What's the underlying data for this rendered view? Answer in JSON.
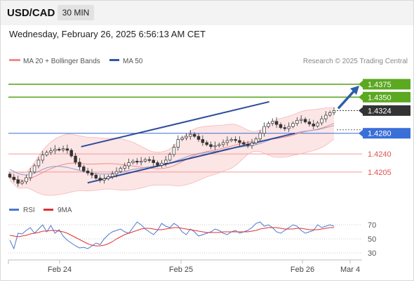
{
  "header": {
    "pair": "USD/CAD",
    "timeframe": "30 MIN"
  },
  "datetime": "Wednesday, February 26, 2025 6:56:13 AM CET",
  "legend": {
    "bollinger": {
      "label": "MA 20 + Bollinger Bands",
      "color": "#f28b8b"
    },
    "ma50": {
      "label": "MA 50",
      "color": "#2e57a4"
    }
  },
  "credit": "Research © 2025 Trading Central",
  "colors": {
    "resistance": "#5ba821",
    "pivot": "#3a6fd8",
    "support": "#f19a9a",
    "current": "#333333",
    "channel": "#2e4c9a",
    "band_fill": "#fbe0e0",
    "candle_up": "#333333",
    "candle_down": "#333333",
    "rsi": "#4a78d0",
    "rsi_ma": "#e03030"
  },
  "chart_data": [
    {
      "type": "candlestick",
      "title": "USD/CAD",
      "timeframe": "30 MIN",
      "xlabel": "",
      "ylabel": "",
      "x_ticks": [
        "Feb 24",
        "Feb 25",
        "Feb 26",
        "Mar 4"
      ],
      "ylim": [
        1.4168,
        1.4398
      ],
      "levels": [
        {
          "value": 1.4375,
          "label": "1.4375",
          "kind": "resistance"
        },
        {
          "value": 1.435,
          "label": "1.4350",
          "kind": "resistance"
        },
        {
          "value": 1.4324,
          "label": "1.4324",
          "kind": "current"
        },
        {
          "value": 1.428,
          "label": "1.4280",
          "kind": "pivot"
        },
        {
          "value": 1.424,
          "label": "1.4240",
          "kind": "support"
        },
        {
          "value": 1.4205,
          "label": "1.4205",
          "kind": "support"
        }
      ],
      "channel": {
        "upper": [
          [
            0.22,
            1.4254
          ],
          [
            0.8,
            1.4341
          ]
        ],
        "lower": [
          [
            0.24,
            1.4184
          ],
          [
            0.88,
            1.428
          ]
        ]
      },
      "target_arrow": {
        "from": 1.4324,
        "to": 1.4375
      },
      "series": [
        {
          "name": "USD/CAD",
          "close": [
            1.4195,
            1.419,
            1.4183,
            1.4186,
            1.4194,
            1.4205,
            1.4217,
            1.4228,
            1.4238,
            1.4243,
            1.4246,
            1.4249,
            1.4248,
            1.425,
            1.4247,
            1.4236,
            1.4224,
            1.4215,
            1.4207,
            1.4203,
            1.4199,
            1.4193,
            1.4189,
            1.4192,
            1.4196,
            1.4201,
            1.4206,
            1.4212,
            1.4217,
            1.4223,
            1.4226,
            1.4224,
            1.4226,
            1.4229,
            1.4228,
            1.4223,
            1.4218,
            1.4222,
            1.4228,
            1.4239,
            1.4253,
            1.4268,
            1.4271,
            1.4274,
            1.4278,
            1.4274,
            1.4268,
            1.4262,
            1.4258,
            1.4254,
            1.4256,
            1.4258,
            1.4262,
            1.4266,
            1.4268,
            1.4266,
            1.4262,
            1.4259,
            1.4256,
            1.4261,
            1.4269,
            1.428,
            1.4293,
            1.4299,
            1.4303,
            1.4297,
            1.4291,
            1.4289,
            1.4293,
            1.4299,
            1.4305,
            1.4307,
            1.4302,
            1.4298,
            1.4294,
            1.43,
            1.4308,
            1.4315,
            1.432,
            1.4324
          ],
          "ma50": [
            1.421,
            1.4206,
            1.4202,
            1.42,
            1.4199,
            1.42,
            1.4203,
            1.4206,
            1.421,
            1.4213,
            1.4215,
            1.4216,
            1.4216,
            1.4215,
            1.4214,
            1.4212,
            1.421,
            1.4208,
            1.4206,
            1.4204,
            1.4203,
            1.4202,
            1.4201,
            1.4201,
            1.4201,
            1.4202,
            1.4203,
            1.4204,
            1.4206,
            1.4208,
            1.421,
            1.4211,
            1.4212,
            1.4214,
            1.4215,
            1.4216,
            1.4217,
            1.4218,
            1.422,
            1.4222,
            1.4225,
            1.4228,
            1.4231,
            1.4234,
            1.4237,
            1.4239,
            1.4241,
            1.4242,
            1.4243,
            1.4244,
            1.4245,
            1.4246,
            1.4248,
            1.425,
            1.4251,
            1.4252,
            1.4253,
            1.4254,
            1.4255,
            1.4256,
            1.4258,
            1.426,
            1.4263,
            1.4266,
            1.4269,
            1.4271,
            1.4273,
            1.4275,
            1.4277,
            1.4279,
            1.4281,
            1.4283,
            1.4284,
            1.4285,
            1.4286,
            1.4287,
            1.4289,
            1.4291,
            1.4293,
            1.4295
          ]
        }
      ]
    },
    {
      "type": "line",
      "title": "",
      "xlabel": "",
      "ylabel": "",
      "ylim": [
        20,
        80
      ],
      "y_ticks": [
        70,
        50,
        30
      ],
      "series": [
        {
          "name": "RSI",
          "values": [
            48,
            36,
            58,
            57,
            62,
            66,
            58,
            64,
            70,
            60,
            69,
            58,
            63,
            54,
            48,
            44,
            40,
            37,
            38,
            36,
            40,
            44,
            42,
            50,
            56,
            60,
            62,
            64,
            60,
            58,
            66,
            74,
            70,
            64,
            60,
            56,
            62,
            72,
            68,
            66,
            72,
            68,
            60,
            56,
            64,
            60,
            54,
            56,
            58,
            60,
            64,
            62,
            58,
            56,
            60,
            62,
            58,
            60,
            62,
            66,
            72,
            74,
            68,
            70,
            66,
            60,
            58,
            62,
            66,
            70,
            68,
            62,
            58,
            60,
            62,
            70,
            66,
            68,
            70,
            68
          ]
        },
        {
          "name": "9MA",
          "values": [
            55,
            54,
            53,
            54,
            55,
            57,
            58,
            59,
            61,
            61,
            62,
            62,
            61,
            60,
            58,
            55,
            52,
            49,
            46,
            43,
            41,
            40,
            40,
            41,
            43,
            46,
            50,
            53,
            56,
            58,
            60,
            62,
            64,
            65,
            65,
            64,
            63,
            63,
            64,
            65,
            66,
            66,
            65,
            64,
            63,
            62,
            61,
            60,
            59,
            59,
            59,
            59,
            60,
            60,
            60,
            60,
            60,
            60,
            60,
            61,
            62,
            64,
            65,
            66,
            66,
            66,
            65,
            64,
            64,
            64,
            65,
            65,
            64,
            63,
            63,
            63,
            64,
            65,
            66,
            66
          ]
        }
      ],
      "legend": [
        "RSI",
        "9MA"
      ]
    }
  ]
}
